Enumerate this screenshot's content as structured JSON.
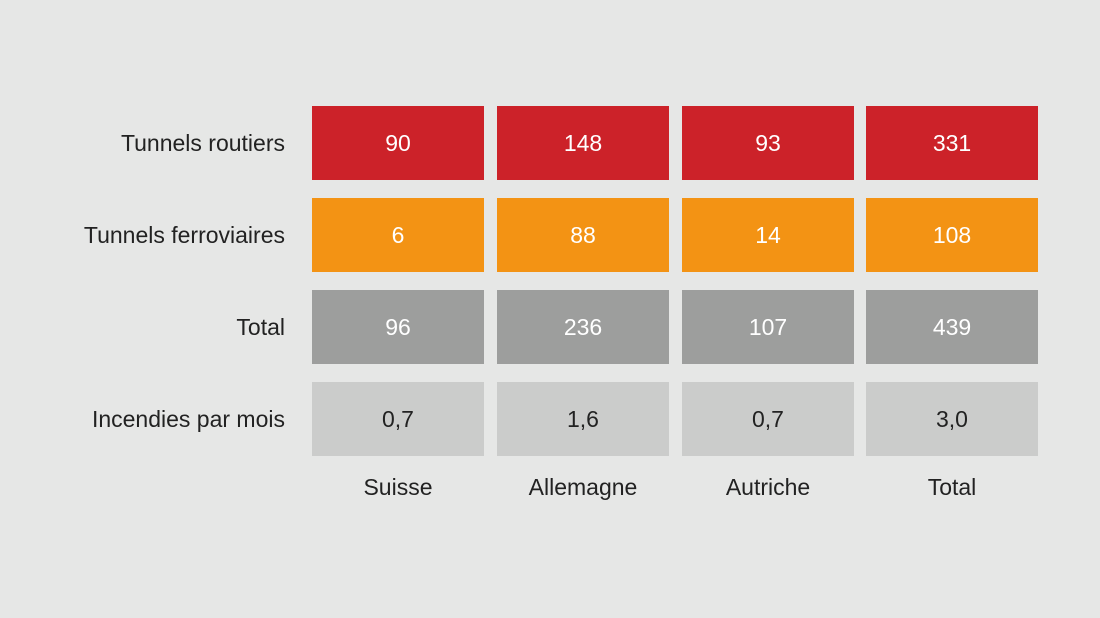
{
  "chart_data": {
    "type": "table",
    "columns": [
      "Suisse",
      "Allemagne",
      "Autriche",
      "Total"
    ],
    "rows": [
      {
        "label": "Tunnels routiers",
        "values": [
          "90",
          "148",
          "93",
          "331"
        ],
        "color": "#cc2229",
        "text_color": "#ffffff"
      },
      {
        "label": "Tunnels ferroviaires",
        "values": [
          "6",
          "88",
          "14",
          "108"
        ],
        "color": "#f39314",
        "text_color": "#ffffff"
      },
      {
        "label": "Total",
        "values": [
          "96",
          "236",
          "107",
          "439"
        ],
        "color": "#9d9e9d",
        "text_color": "#ffffff"
      },
      {
        "label": "Incendies par mois",
        "values": [
          "0,7",
          "1,6",
          "0,7",
          "3,0"
        ],
        "color": "#cbcccb",
        "text_color": "#222222"
      }
    ]
  }
}
